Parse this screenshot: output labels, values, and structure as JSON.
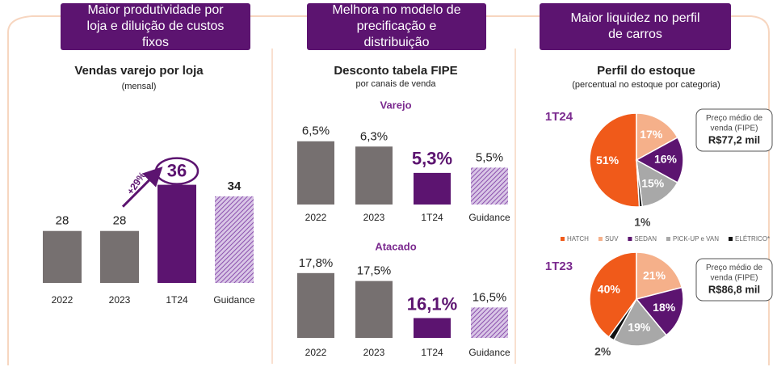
{
  "headers": [
    "Maior produtividade por loja e diluição de custos fixos",
    "Melhora no modelo de precificação e distribuição",
    "Maior liquidez no perfil de carros"
  ],
  "chart_data": [
    {
      "type": "bar",
      "title": "Vendas varejo por loja",
      "subtitle": "(mensal)",
      "categories": [
        "2022",
        "2023",
        "1T24",
        "Guidance"
      ],
      "values": [
        28,
        28,
        36,
        34
      ],
      "colors": [
        "#767070",
        "#767070",
        "#5c1470",
        "#a67fc0"
      ],
      "hatched": [
        false,
        false,
        false,
        true
      ],
      "highlight": 2,
      "annotation": "+29%",
      "ylim": [
        19,
        40
      ]
    },
    {
      "type": "bar",
      "title": "Desconto tabela FIPE",
      "subtitle": "por canais de venda",
      "panel_title": "Varejo",
      "categories": [
        "2022",
        "2023",
        "1T24",
        "Guidance"
      ],
      "values": [
        6.5,
        6.3,
        5.3,
        5.5
      ],
      "value_labels": [
        "6,5%",
        "6,3%",
        "5,3%",
        "5,5%"
      ],
      "colors": [
        "#767070",
        "#767070",
        "#5c1470",
        "#a67fc0"
      ],
      "hatched": [
        false,
        false,
        false,
        true
      ],
      "highlight": 2,
      "ylim": [
        4.1,
        6.8
      ]
    },
    {
      "type": "bar",
      "panel_title": "Atacado",
      "categories": [
        "2022",
        "2023",
        "1T24",
        "Guidance"
      ],
      "values": [
        17.8,
        17.5,
        16.1,
        16.5
      ],
      "value_labels": [
        "17,8%",
        "17,5%",
        "16,1%",
        "16,5%"
      ],
      "colors": [
        "#767070",
        "#767070",
        "#5c1470",
        "#a67fc0"
      ],
      "hatched": [
        false,
        false,
        false,
        true
      ],
      "highlight": 2,
      "ylim": [
        15.35,
        18.1
      ]
    },
    {
      "type": "pie",
      "title": "Perfil do estoque",
      "subtitle": "(percentual no estoque por categoria)",
      "label": "1T24",
      "categories": [
        "HATCH",
        "SUV",
        "SEDAN",
        "PICK-UP e VAN",
        "ELÉTRICO*"
      ],
      "values": [
        51,
        17,
        16,
        15,
        1
      ],
      "value_labels": [
        "51%",
        "17%",
        "16%",
        "15%",
        "1%"
      ],
      "colors": [
        "#f05a1a",
        "#f5b08a",
        "#5c1470",
        "#a8a8a8",
        "#111111"
      ],
      "note_title": "Preço médio de venda (FIPE)",
      "note_value": "R$77,2 mil",
      "legend": true
    },
    {
      "type": "pie",
      "label": "1T23",
      "categories": [
        "HATCH",
        "SUV",
        "SEDAN",
        "PICK-UP e VAN",
        "ELÉTRICO*"
      ],
      "values": [
        40,
        21,
        18,
        19,
        2
      ],
      "value_labels": [
        "40%",
        "21%",
        "18%",
        "19%",
        "2%"
      ],
      "colors": [
        "#f05a1a",
        "#f5b08a",
        "#5c1470",
        "#a8a8a8",
        "#111111"
      ],
      "note_title": "Preço médio de venda (FIPE)",
      "note_value": "R$86,8 mil"
    }
  ]
}
